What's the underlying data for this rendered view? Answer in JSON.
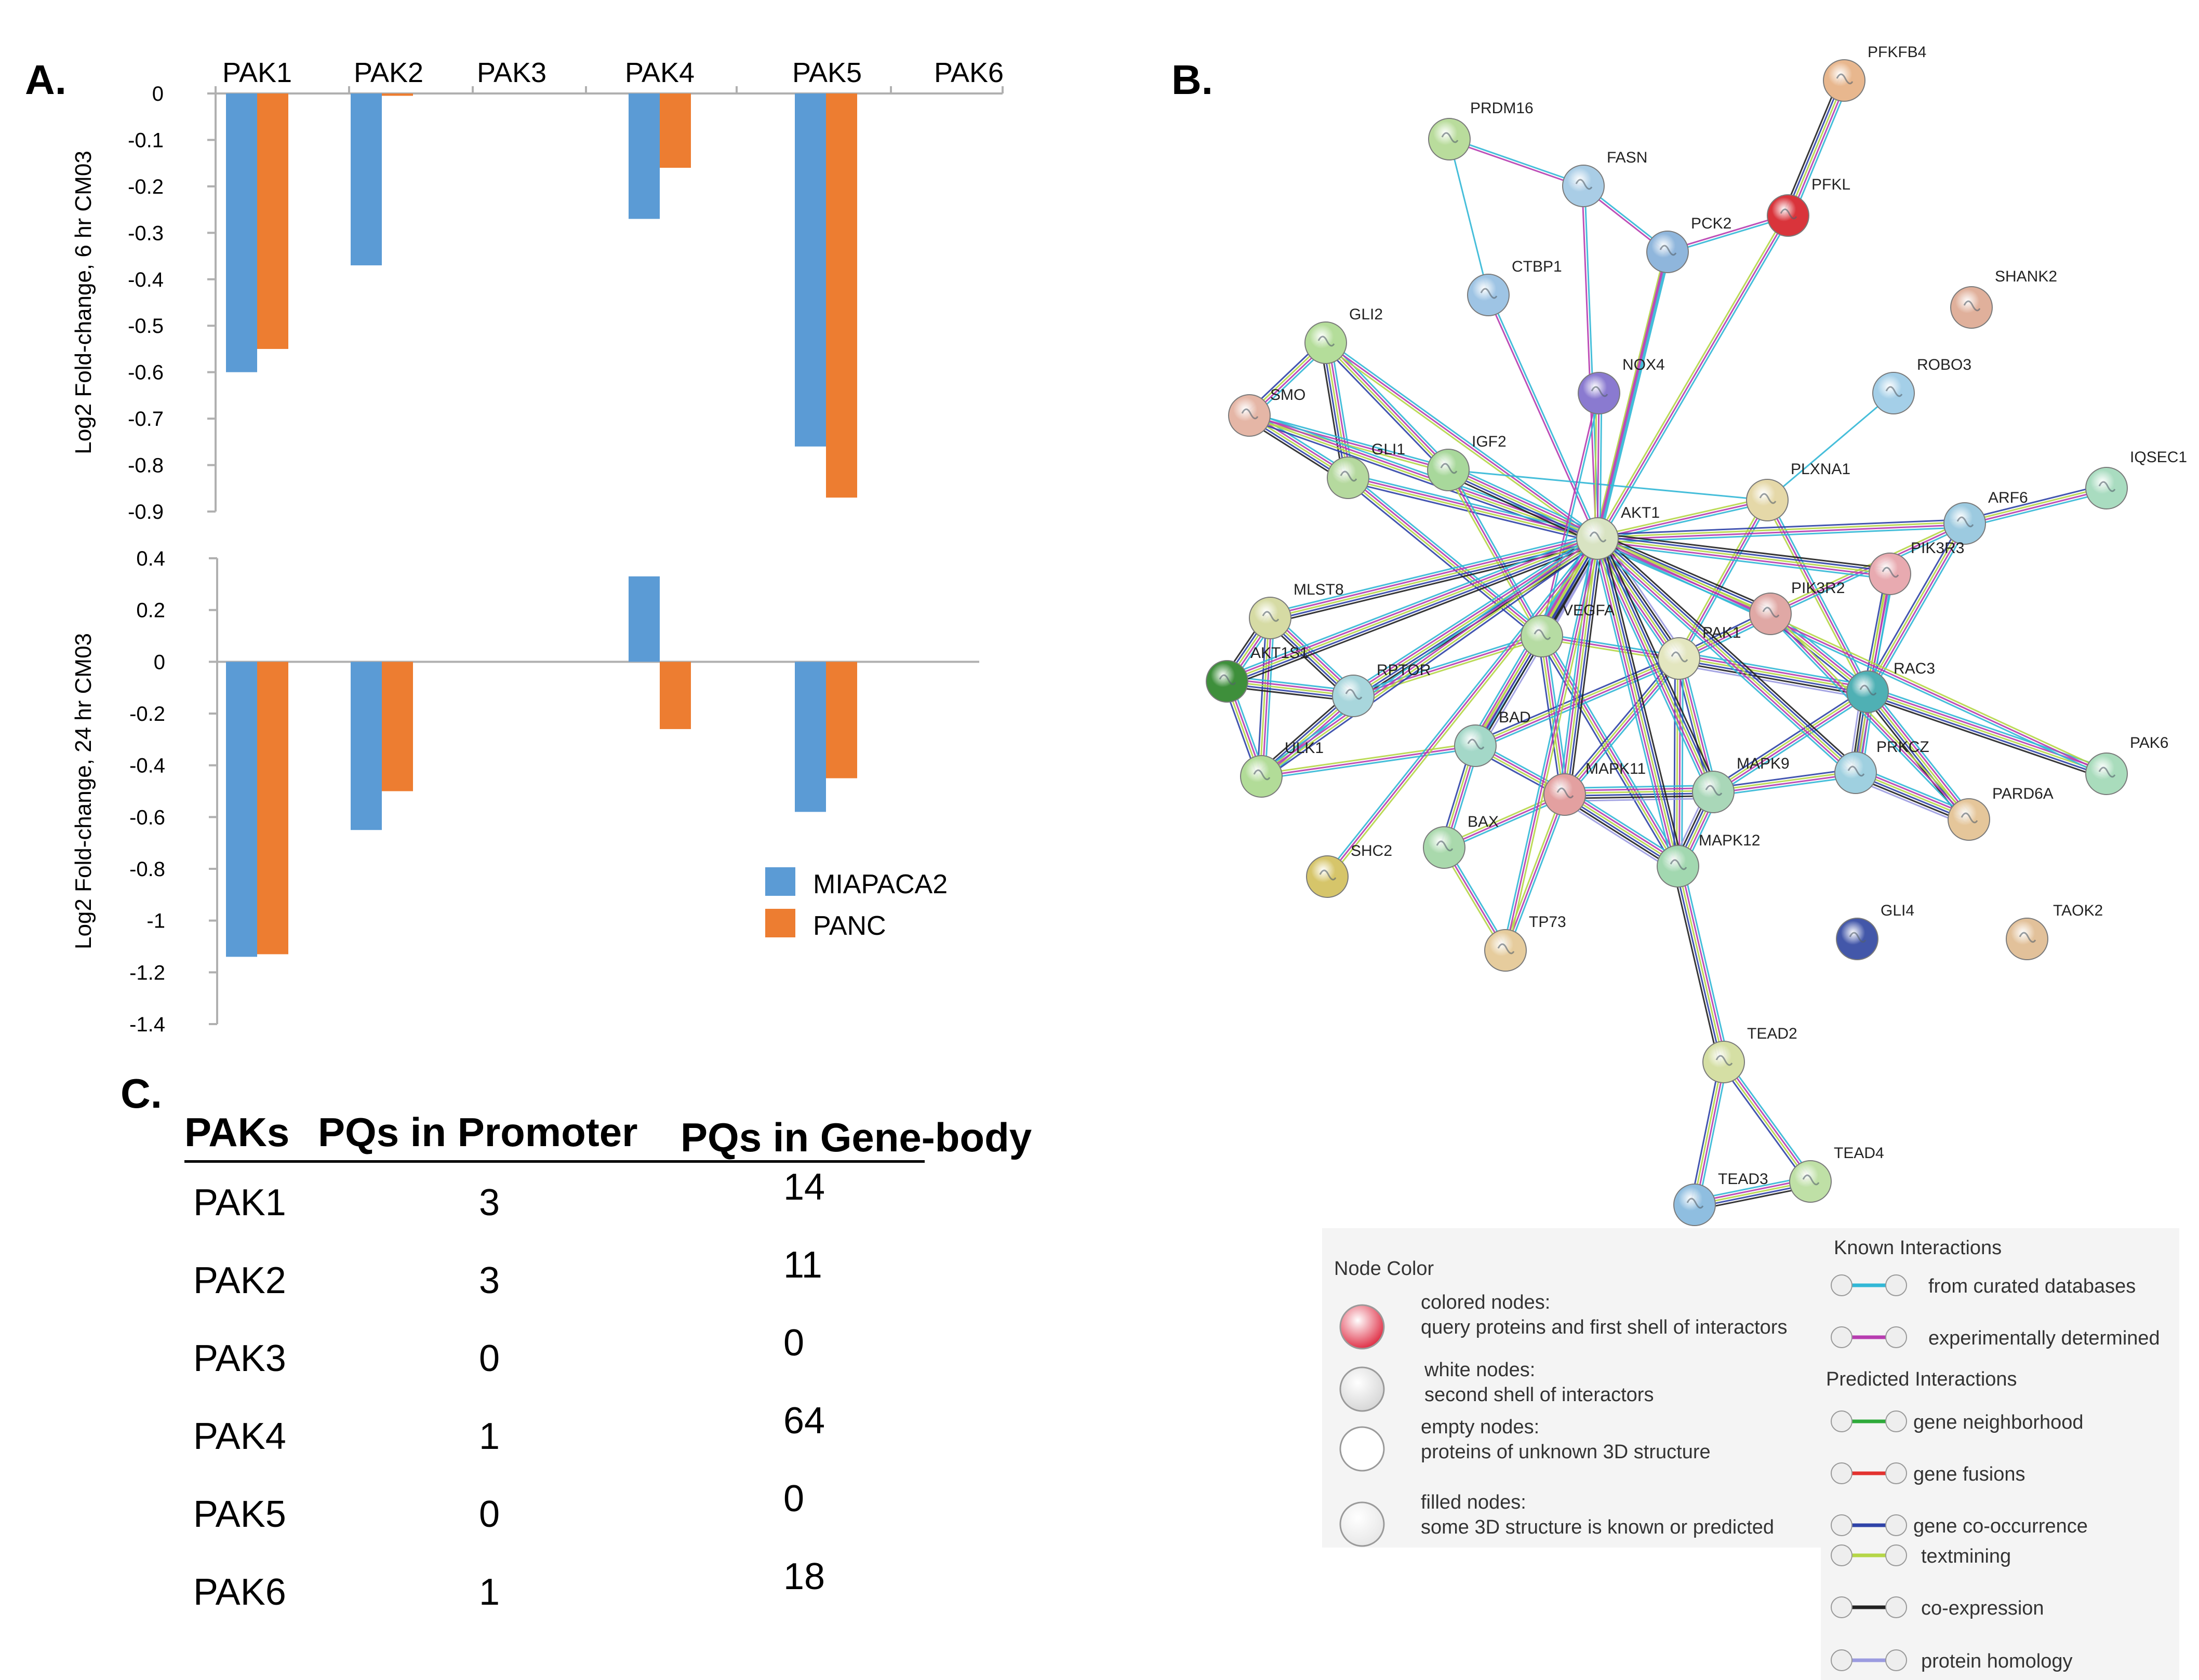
{
  "panel_labels": {
    "a": "A.",
    "b": "B.",
    "c": "C."
  },
  "chart_data": [
    {
      "type": "bar",
      "panel": "A-top",
      "categories": [
        "PAK1",
        "PAK2",
        "PAK3",
        "PAK4",
        "PAK5",
        "PAK6"
      ],
      "ylabel": "Log2 Fold-change, 6 hr CM03",
      "ylim": [
        -0.9,
        0
      ],
      "yticks": [
        0,
        -0.1,
        -0.2,
        -0.3,
        -0.4,
        -0.5,
        -0.6,
        -0.7,
        -0.8,
        -0.9
      ],
      "ytick_labels": [
        "0",
        "-0.1",
        "-0.2",
        "-0.3",
        "-0.4",
        "-0.5",
        "-0.6",
        "-0.7",
        "-0.8",
        "-0.9"
      ],
      "series": [
        {
          "name": "MIAPACA2",
          "values": [
            -0.6,
            -0.37,
            0,
            -0.27,
            -0.76,
            0
          ]
        },
        {
          "name": "PANC",
          "values": [
            -0.55,
            -0.005,
            0,
            -0.16,
            -0.87,
            0
          ]
        }
      ]
    },
    {
      "type": "bar",
      "panel": "A-bottom",
      "categories": [
        "PAK1",
        "PAK2",
        "PAK3",
        "PAK4",
        "PAK5",
        "PAK6"
      ],
      "ylabel": "Log2 Fold-change,  24 hr CM03",
      "ylim": [
        -1.4,
        0.4
      ],
      "yticks": [
        0.4,
        0.2,
        0,
        -0.2,
        -0.4,
        -0.6,
        -0.8,
        -1,
        -1.2,
        -1.4
      ],
      "ytick_labels": [
        "0.4",
        "0.2",
        "0",
        "-0.2",
        "-0.4",
        "-0.6",
        "-0.8",
        "-1",
        "-1.2",
        "-1.4"
      ],
      "series": [
        {
          "name": "MIAPACA2",
          "values": [
            -1.14,
            -0.65,
            0,
            0.33,
            -0.58,
            0
          ]
        },
        {
          "name": "PANC",
          "values": [
            -1.13,
            -0.5,
            0,
            -0.26,
            -0.45,
            0
          ]
        }
      ],
      "legend": [
        "MIAPACA2",
        "PANC"
      ]
    },
    {
      "type": "table",
      "panel": "C",
      "columns": [
        "PAKs",
        "PQs in Promoter",
        "PQs in Gene-body"
      ],
      "rows": [
        [
          "PAK1",
          "3",
          "14"
        ],
        [
          "PAK2",
          "3",
          "11"
        ],
        [
          "PAK3",
          "0",
          "0"
        ],
        [
          "PAK4",
          "1",
          "64"
        ],
        [
          "PAK5",
          "0",
          "0"
        ],
        [
          "PAK6",
          "1",
          "18"
        ]
      ]
    }
  ],
  "colors": {
    "miapaca2": "#5b9bd5",
    "panc": "#ed7d31",
    "axis": "#b0b0b0"
  },
  "network": {
    "nodes": [
      {
        "id": "PFKFB4",
        "color": "#e8b78e"
      },
      {
        "id": "PRDM16",
        "color": "#b9dc9c"
      },
      {
        "id": "FASN",
        "color": "#a9cde6"
      },
      {
        "id": "PFKL",
        "color": "#d9343b"
      },
      {
        "id": "PCK2",
        "color": "#8fb6dc"
      },
      {
        "id": "CTBP1",
        "color": "#9ec4e4"
      },
      {
        "id": "SHANK2",
        "color": "#e0b09b"
      },
      {
        "id": "GLI2",
        "color": "#b4dd9a"
      },
      {
        "id": "NOX4",
        "color": "#8a7ad0"
      },
      {
        "id": "ROBO3",
        "color": "#a4cfe8"
      },
      {
        "id": "SMO",
        "color": "#e5b6a6"
      },
      {
        "id": "GLI1",
        "color": "#b5d99e"
      },
      {
        "id": "IGF2",
        "color": "#a8d89b"
      },
      {
        "id": "PLXNA1",
        "color": "#e5d8a8"
      },
      {
        "id": "IQSEC1",
        "color": "#a9dcc0"
      },
      {
        "id": "AKT1",
        "color": "#d8e3c2"
      },
      {
        "id": "ARF6",
        "color": "#9ccae0"
      },
      {
        "id": "PIK3R3",
        "color": "#e8aab0"
      },
      {
        "id": "MLST8",
        "color": "#d6dba4"
      },
      {
        "id": "PIK3R2",
        "color": "#e0a8a5"
      },
      {
        "id": "VEGFA",
        "color": "#b6dca3"
      },
      {
        "id": "PAK1",
        "color": "#e3e6bf"
      },
      {
        "id": "AKT1S1",
        "color": "#3e8f3b"
      },
      {
        "id": "RAC3",
        "color": "#4fb0b4"
      },
      {
        "id": "RPTOR",
        "color": "#a8d6dc"
      },
      {
        "id": "BAD",
        "color": "#a4d8c8"
      },
      {
        "id": "PAK6",
        "color": "#a9dcbc"
      },
      {
        "id": "PRKCZ",
        "color": "#9fd0e0"
      },
      {
        "id": "ULK1",
        "color": "#b2dc98"
      },
      {
        "id": "MAPK11",
        "color": "#e3a0a0"
      },
      {
        "id": "MAPK9",
        "color": "#a9d7b8"
      },
      {
        "id": "PARD6A",
        "color": "#e5c69a"
      },
      {
        "id": "BAX",
        "color": "#a9d9ac"
      },
      {
        "id": "SHC2",
        "color": "#d6c56a"
      },
      {
        "id": "MAPK12",
        "color": "#a2d8b0"
      },
      {
        "id": "GLI4",
        "color": "#4357a9"
      },
      {
        "id": "TAOK2",
        "color": "#e2c19a"
      },
      {
        "id": "TP73",
        "color": "#e6cc9d"
      },
      {
        "id": "TEAD2",
        "color": "#d5dfa4"
      },
      {
        "id": "TEAD4",
        "color": "#bfe0a6"
      },
      {
        "id": "TEAD3",
        "color": "#8fbee0"
      }
    ],
    "legend": {
      "node_color_title": "Node Color",
      "node_items": [
        {
          "title": "colored nodes:",
          "desc": "query proteins and first shell of interactors"
        },
        {
          "title": "white nodes:",
          "desc": "second shell of interactors"
        },
        {
          "title": "empty nodes:",
          "desc": "proteins of unknown 3D structure"
        },
        {
          "title": "filled nodes:",
          "desc": "some 3D structure is known or predicted"
        }
      ],
      "known_title": "Known Interactions",
      "known_items": [
        {
          "label": "from curated databases",
          "color": "#32b8d6"
        },
        {
          "label": "experimentally determined",
          "color": "#b73db0"
        }
      ],
      "predicted_title": "Predicted Interactions",
      "predicted_items": [
        {
          "label": "gene neighborhood",
          "color": "#2eaa3a"
        },
        {
          "label": "gene fusions",
          "color": "#e3322f"
        },
        {
          "label": "gene co-occurrence",
          "color": "#2f43a8"
        },
        {
          "label": "textmining",
          "color": "#b5d647"
        },
        {
          "label": "co-expression",
          "color": "#222222"
        },
        {
          "label": "protein homology",
          "color": "#9b9be0"
        }
      ]
    }
  }
}
